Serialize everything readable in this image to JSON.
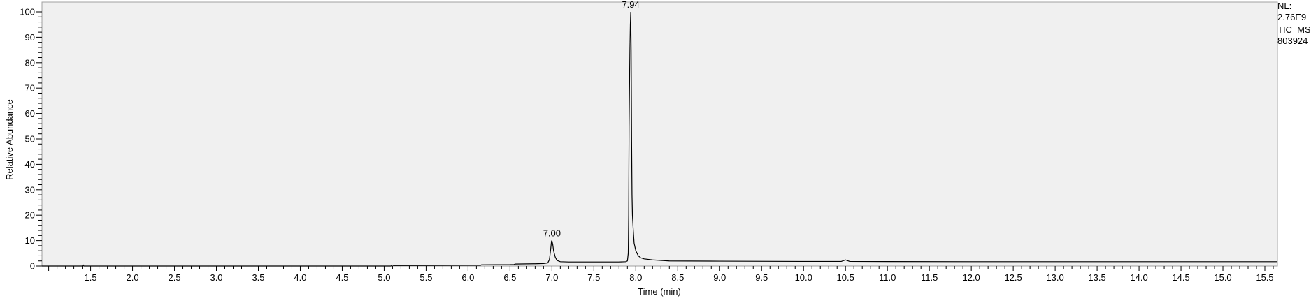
{
  "chart_data": {
    "type": "line",
    "xlabel": "Time (min)",
    "ylabel": "Relative Abundance",
    "xlim": [
      0.92,
      15.65
    ],
    "ylim": [
      0,
      100
    ],
    "x_ticks": [
      "1.5",
      "2.0",
      "2.5",
      "3.0",
      "3.5",
      "4.0",
      "4.5",
      "5.0",
      "5.5",
      "6.0",
      "6.5",
      "7.0",
      "7.5",
      "8.0",
      "8.5",
      "9.0",
      "9.5",
      "10.0",
      "10.5",
      "11.0",
      "11.5",
      "12.0",
      "12.5",
      "13.0",
      "13.5",
      "14.0",
      "14.5",
      "15.0",
      "15.5"
    ],
    "y_ticks": [
      "0",
      "10",
      "20",
      "30",
      "40",
      "50",
      "60",
      "70",
      "80",
      "90",
      "100"
    ],
    "grid": false,
    "series": [
      {
        "color": "#000000",
        "x": [
          0.92,
          1.4,
          1.41,
          1.42,
          2.0,
          3.0,
          4.0,
          5.0,
          5.08,
          5.1,
          5.11,
          5.5,
          6.0,
          6.15,
          6.16,
          6.5,
          6.55,
          6.56,
          6.8,
          6.9,
          6.95,
          6.97,
          6.985,
          6.995,
          7.0,
          7.01,
          7.02,
          7.04,
          7.06,
          7.1,
          7.2,
          7.5,
          7.8,
          7.88,
          7.9,
          7.91,
          7.915,
          7.92,
          7.925,
          7.93,
          7.935,
          7.94,
          7.945,
          7.95,
          7.955,
          7.96,
          7.97,
          7.98,
          8.0,
          8.03,
          8.06,
          8.1,
          8.2,
          8.3,
          8.35,
          8.4,
          9.0,
          10.0,
          10.45,
          10.5,
          10.55,
          11.0,
          12.0,
          13.0,
          14.0,
          15.0,
          15.65
        ],
        "y": [
          0.0,
          0.0,
          0.5,
          0.0,
          0.0,
          0.0,
          0.0,
          0.0,
          0.0,
          0.4,
          0.2,
          0.25,
          0.3,
          0.3,
          0.5,
          0.55,
          0.6,
          0.8,
          0.9,
          1.0,
          1.2,
          2.5,
          6.5,
          9.8,
          10.0,
          8.5,
          6.0,
          3.5,
          2.2,
          1.7,
          1.6,
          1.6,
          1.6,
          1.7,
          2.0,
          5.0,
          20.0,
          55.0,
          70.0,
          85.0,
          95.0,
          100.0,
          85.0,
          50.0,
          28.0,
          20.0,
          14.0,
          9.0,
          6.0,
          4.0,
          3.2,
          2.8,
          2.4,
          2.2,
          2.1,
          2.0,
          1.9,
          1.8,
          1.8,
          2.4,
          1.8,
          1.75,
          1.7,
          1.7,
          1.7,
          1.7,
          1.7
        ]
      }
    ],
    "peak_labels": [
      {
        "x": 7.0,
        "y": 10.0,
        "text": "7.00"
      },
      {
        "x": 7.94,
        "y": 100.0,
        "text": "7.94"
      }
    ],
    "info": [
      "NL:",
      "2.76E9",
      "TIC  MS",
      "803924"
    ]
  }
}
